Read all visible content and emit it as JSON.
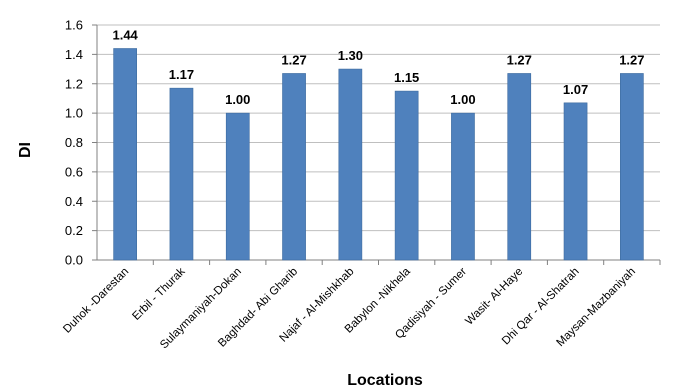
{
  "chart_data": {
    "type": "bar",
    "title": "",
    "xlabel": "Locations",
    "ylabel": "DI",
    "ylim": [
      0,
      1.6
    ],
    "yticks": [
      0.0,
      0.2,
      0.4,
      0.6,
      0.8,
      1.0,
      1.2,
      1.4,
      1.6
    ],
    "ytick_labels": [
      "0.0",
      "0.2",
      "0.4",
      "0.6",
      "0.8",
      "1.0",
      "1.2",
      "1.4",
      "1.6"
    ],
    "grid": true,
    "legend": "none",
    "bar_color": "#4f81bd",
    "categories": [
      "Duhok -Darestan",
      "Erbil - Thurak",
      "Sulaymaniyah-Dokan",
      "Baghdad- Abi Gharib",
      "Najaf - Al-Mishkhab",
      "Babylon -Nikhela",
      "Qadisiyah - Sumer",
      "Wasit- Al-Haye",
      "Dhi Qar - Al-Shatrah",
      "Maysan-Mazbaniyah"
    ],
    "values": [
      1.44,
      1.17,
      1.0,
      1.27,
      1.3,
      1.15,
      1.0,
      1.27,
      1.07,
      1.27
    ],
    "data_labels": [
      "1.44",
      "1.17",
      "1.00",
      "1.27",
      "1.30",
      "1.15",
      "1.00",
      "1.27",
      "1.07",
      "1.27"
    ]
  }
}
